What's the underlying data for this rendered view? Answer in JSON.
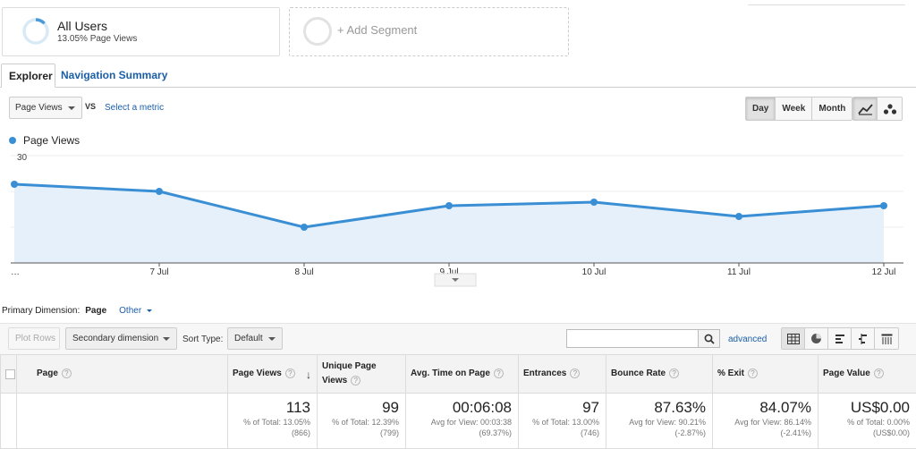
{
  "segments": {
    "all_users": {
      "title": "All Users",
      "subtitle": "13.05% Page Views",
      "percent": 13.05
    },
    "add_segment": {
      "label": "+ Add Segment"
    }
  },
  "tabs": [
    {
      "label": "Explorer",
      "active": true
    },
    {
      "label": "Navigation Summary",
      "active": false
    }
  ],
  "metric_bar": {
    "metric": "Page Views",
    "vs": "VS",
    "select_metric": "Select a metric"
  },
  "periods": [
    {
      "label": "Day",
      "active": true
    },
    {
      "label": "Week",
      "active": false
    },
    {
      "label": "Month",
      "active": false
    }
  ],
  "chart_views": [
    {
      "icon": "line-chart-icon",
      "active": true
    },
    {
      "icon": "motion-chart-icon",
      "active": false
    }
  ],
  "chart_data": {
    "type": "area",
    "series": [
      {
        "name": "Page Views",
        "values": [
          22,
          20,
          10,
          16,
          17,
          13,
          16
        ]
      }
    ],
    "categories": [
      "…",
      "7 Jul",
      "8 Jul",
      "9 Jul",
      "10 Jul",
      "11 Jul",
      "12 Jul"
    ],
    "ylim": [
      0,
      30
    ],
    "yticks": [
      "10",
      "20",
      "30"
    ],
    "color": "#3a8fd4",
    "fill": "#e5f0fa",
    "grid": true,
    "legend": "top-left"
  },
  "dimension": {
    "label": "Primary Dimension:",
    "current": "Page",
    "other": "Other"
  },
  "toolbar": {
    "plot_rows": "Plot Rows",
    "secondary_dimension": "Secondary dimension",
    "sort_type_label": "Sort Type:",
    "sort_type_value": "Default",
    "search_placeholder": "",
    "advanced": "advanced"
  },
  "table_views": [
    "data-table-icon",
    "pie-chart-icon",
    "performance-icon",
    "comparison-icon",
    "pivot-icon"
  ],
  "table": {
    "columns": [
      {
        "label": "Page"
      },
      {
        "label": "Page Views",
        "sorted": true
      },
      {
        "label": "Unique Page Views"
      },
      {
        "label": "Avg. Time on Page"
      },
      {
        "label": "Entrances"
      },
      {
        "label": "Bounce Rate"
      },
      {
        "label": "% Exit"
      },
      {
        "label": "Page Value"
      }
    ],
    "totals": [
      {
        "value": "113",
        "line1": "% of Total: 13.05%",
        "line2": "(866)"
      },
      {
        "value": "99",
        "line1": "% of Total: 12.39%",
        "line2": "(799)"
      },
      {
        "value": "00:06:08",
        "line1": "Avg for View: 00:03:38",
        "line2": "(69.37%)"
      },
      {
        "value": "97",
        "line1": "% of Total: 13.00%",
        "line2": "(746)"
      },
      {
        "value": "87.63%",
        "line1": "Avg for View: 90.21%",
        "line2": "(-2.87%)"
      },
      {
        "value": "84.07%",
        "line1": "Avg for View: 86.14%",
        "line2": "(-2.41%)"
      },
      {
        "value": "US$0.00",
        "line1": "% of Total: 0.00%",
        "line2": "(US$0.00)"
      }
    ]
  }
}
